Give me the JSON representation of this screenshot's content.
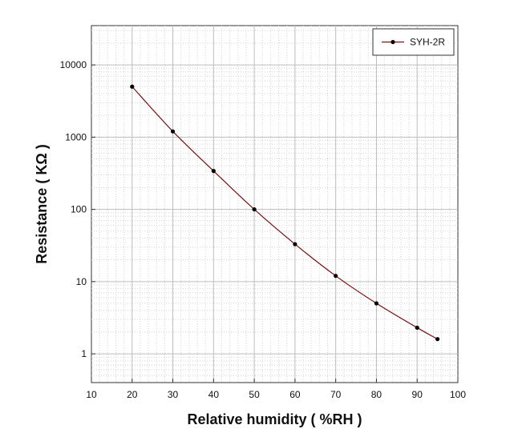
{
  "chart_data": {
    "type": "line",
    "title": "",
    "xlabel": "Relative humidity ( %RH )",
    "ylabel": "Resistance ( KΩ )",
    "xlim": [
      10,
      100
    ],
    "ylim": [
      0.4,
      35000
    ],
    "yscale": "log",
    "x_ticks": [
      "10",
      "20",
      "30",
      "40",
      "50",
      "60",
      "70",
      "80",
      "90",
      "100"
    ],
    "y_ticks": [
      "1",
      "10",
      "100",
      "1000",
      "10000"
    ],
    "grid": true,
    "legend_position": "top-right",
    "series": [
      {
        "name": "SYH-2R",
        "color": "#7a1010",
        "marker_color": "#000000",
        "x": [
          20,
          30,
          40,
          50,
          60,
          70,
          80,
          90,
          95
        ],
        "y": [
          5000,
          1200,
          340,
          100,
          33,
          12,
          5,
          2.3,
          1.6
        ]
      }
    ]
  }
}
